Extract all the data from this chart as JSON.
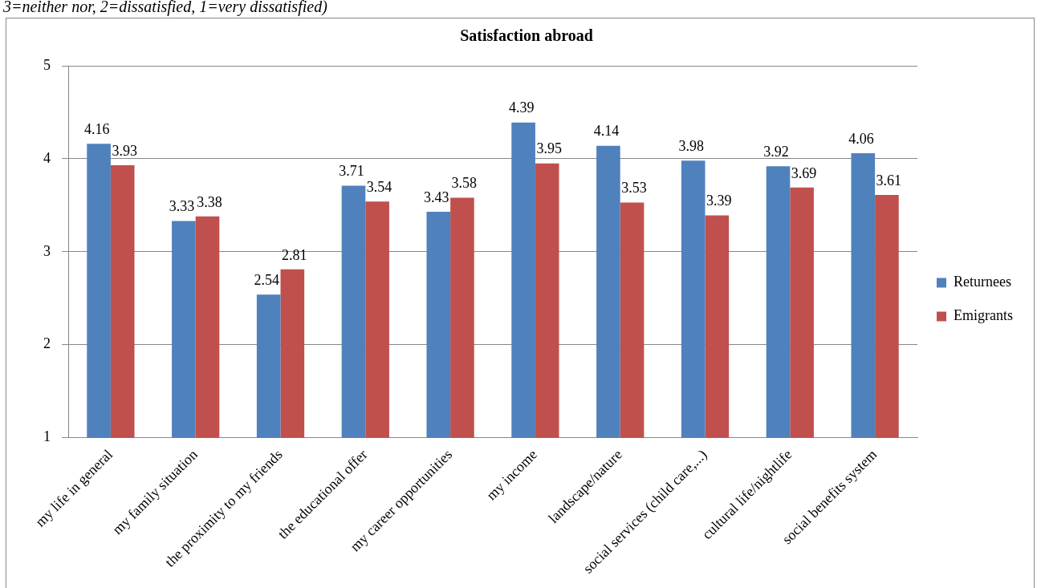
{
  "chart_data": {
    "type": "bar",
    "title": "Satisfaction abroad",
    "annotations": [
      "3=neither nor, 2=dissatisfied, 1=very dissatisfied)"
    ],
    "categories": [
      "my life in general",
      "my family situation",
      "the proximity to my friends",
      "the educational offer",
      "my career opportunities",
      "my income",
      "landscape/nature",
      "social services (child care,...)",
      "cultural life/nightlife",
      "social benefits system"
    ],
    "series": [
      {
        "name": "Returnees",
        "color": "#4f81bd",
        "values": [
          4.16,
          3.33,
          2.54,
          3.71,
          3.43,
          4.39,
          4.14,
          3.98,
          3.92,
          4.06
        ]
      },
      {
        "name": "Emigrants",
        "color": "#c0504d",
        "values": [
          3.93,
          3.38,
          2.81,
          3.54,
          3.58,
          3.95,
          3.53,
          3.39,
          3.69,
          3.61
        ]
      }
    ],
    "ylim": [
      1,
      5
    ],
    "yticks": [
      1,
      2,
      3,
      4,
      5
    ],
    "grid": "y",
    "legend": "right",
    "data_labels": true
  }
}
